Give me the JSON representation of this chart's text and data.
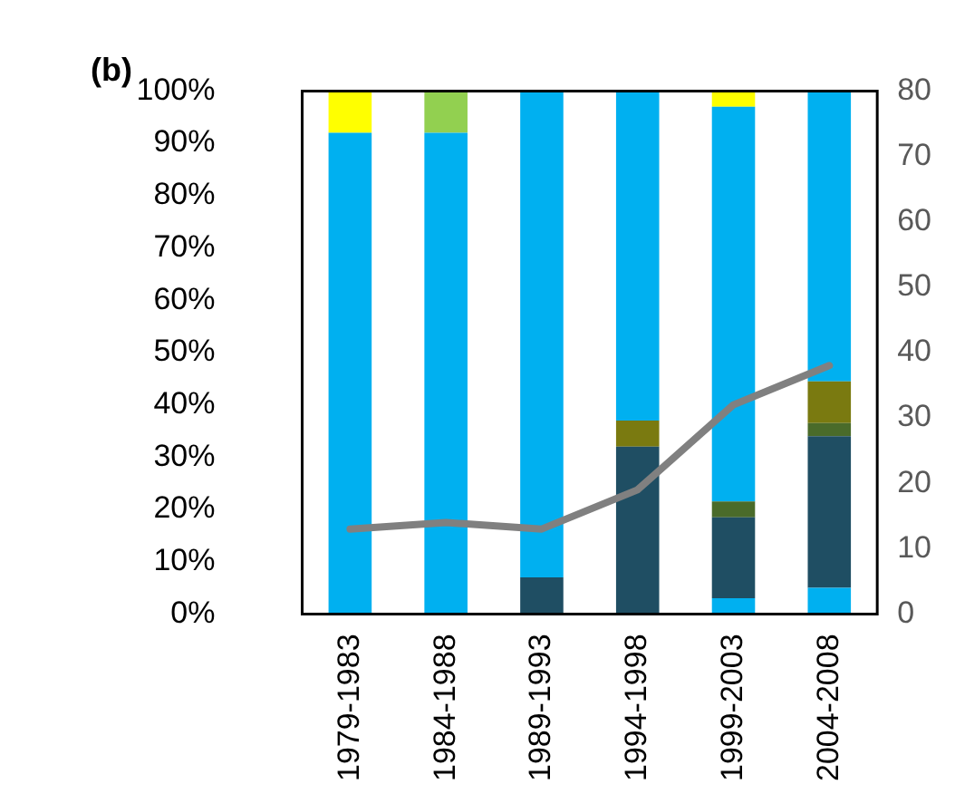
{
  "chart_data": {
    "type": "bar",
    "title": "(b)",
    "stacked": true,
    "categories": [
      "1979-1983",
      "1984-1988",
      "1989-1993",
      "1994-1998",
      "1999-2003",
      "2004-2008"
    ],
    "series": [
      {
        "color": "#00b0f0",
        "values": [
          0,
          0,
          0,
          0,
          3,
          5
        ]
      },
      {
        "color": "#1f4e63",
        "values": [
          0,
          0,
          7,
          32,
          15.5,
          29
        ]
      },
      {
        "color": "#4a6b2a",
        "values": [
          0,
          0,
          0,
          0,
          3,
          2.5
        ]
      },
      {
        "color": "#7a7a10",
        "values": [
          0,
          0,
          0,
          5,
          0,
          8
        ]
      },
      {
        "color": "#00b0f0",
        "values": [
          92,
          92,
          93,
          63,
          75.5,
          55.5
        ]
      },
      {
        "color": "#ffff00",
        "values": [
          8,
          0,
          0,
          0,
          3,
          0
        ]
      },
      {
        "color": "#92d050",
        "values": [
          0,
          8,
          0,
          0,
          0,
          0
        ]
      },
      {
        "type": "line",
        "axis": "y2",
        "color": "#808080",
        "values": [
          13,
          14,
          13,
          19,
          32,
          38
        ]
      }
    ],
    "ylim": [
      0,
      100
    ],
    "yticks": [
      {
        "value": 0,
        "label": "0%"
      },
      {
        "value": 10,
        "label": "10%"
      },
      {
        "value": 20,
        "label": "20%"
      },
      {
        "value": 30,
        "label": "30%"
      },
      {
        "value": 40,
        "label": "40%"
      },
      {
        "value": 50,
        "label": "50%"
      },
      {
        "value": 60,
        "label": "60%"
      },
      {
        "value": 70,
        "label": "70%"
      },
      {
        "value": 80,
        "label": "80%"
      },
      {
        "value": 90,
        "label": "90%"
      },
      {
        "value": 100,
        "label": "100%"
      }
    ],
    "y2lim": [
      0,
      80
    ],
    "y2ticks": [
      0,
      10,
      20,
      30,
      40,
      50,
      60,
      70,
      80
    ],
    "grid": false,
    "legend": false,
    "marker": "none",
    "line_style": "solid"
  }
}
